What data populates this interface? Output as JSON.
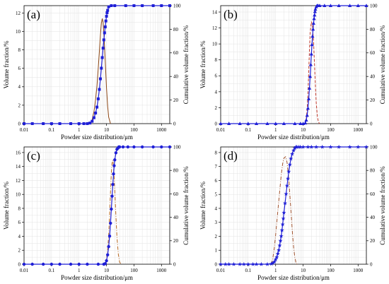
{
  "figure": {
    "panel_letters": [
      "(a)",
      "(b)",
      "(c)",
      "(d)"
    ]
  },
  "chart_data": [
    {
      "panel": "(a)",
      "type": "line",
      "xlabel": "Powder size distribution/μm",
      "ylabel": "Volume fraction/%",
      "y2label": "Cumulative volume fraction/%",
      "xscale": "log",
      "xlim": [
        0.01,
        2000
      ],
      "xticks": [
        "0.01",
        "0.1",
        "1",
        "10",
        "100",
        "1000"
      ],
      "ylim": [
        0,
        12.8
      ],
      "yticks": [
        0,
        2,
        4,
        6,
        8,
        10,
        12
      ],
      "y2lim": [
        0,
        100
      ],
      "y2ticks": [
        0,
        20,
        40,
        60,
        80,
        100
      ],
      "grid": true,
      "colors": {
        "frequency": "#8b4513",
        "cumulative": "#1f1fd6"
      },
      "marker": "square",
      "frequency_style": "solid",
      "frequency": {
        "x": [
          2.5,
          3,
          3.5,
          4,
          4.5,
          5,
          5.5,
          6,
          6.5,
          7,
          7.5,
          8,
          9,
          10,
          11,
          12,
          14
        ],
        "y": [
          0,
          0.4,
          1.3,
          2.6,
          4.1,
          6.0,
          7.8,
          9.6,
          10.9,
          11.4,
          11.0,
          9.8,
          6.8,
          3.9,
          1.9,
          0.7,
          0
        ]
      },
      "cumulative": {
        "x": [
          0.01,
          0.02,
          0.05,
          0.1,
          0.2,
          0.5,
          1,
          1.5,
          2,
          2.5,
          3,
          3.5,
          4,
          4.5,
          5,
          5.5,
          6,
          6.5,
          7,
          7.5,
          8,
          8.5,
          9,
          9.5,
          10,
          10.5,
          11,
          12,
          15,
          20,
          50,
          100,
          200,
          500,
          1000,
          2000
        ],
        "y": [
          0,
          0,
          0,
          0,
          0,
          0,
          0,
          0,
          0,
          0.5,
          2,
          5,
          9,
          14,
          21,
          29,
          38,
          47,
          56,
          64,
          71,
          77,
          82,
          87,
          91,
          94,
          96,
          99,
          100,
          100,
          100,
          100,
          100,
          100,
          100,
          100
        ]
      }
    },
    {
      "panel": "(b)",
      "type": "line",
      "xlabel": "Powder size distribution/μm",
      "ylabel": "Volume fraction/%",
      "y2label": "Cumulative volume fraction/%",
      "xscale": "log",
      "xlim": [
        0.01,
        2000
      ],
      "xticks": [
        "0.01",
        "0.1",
        "1",
        "10",
        "100",
        "1000"
      ],
      "ylim": [
        0,
        14.8
      ],
      "yticks": [
        0,
        2,
        4,
        6,
        8,
        10,
        12,
        14
      ],
      "y2lim": [
        0,
        100
      ],
      "y2ticks": [
        0,
        20,
        40,
        60,
        80,
        100
      ],
      "grid": true,
      "colors": {
        "frequency": "#c0392b",
        "cumulative": "#1f1fd6"
      },
      "marker": "triangle",
      "frequency_style": "dashed",
      "frequency": {
        "x": [
          12,
          13,
          14,
          15,
          16,
          17,
          18,
          20,
          22,
          24,
          26,
          28,
          30,
          33,
          36,
          40
        ],
        "y": [
          0,
          0.6,
          1.8,
          3.8,
          6.5,
          9.2,
          11.4,
          12.8,
          12.2,
          10.2,
          7.4,
          4.7,
          2.6,
          0.9,
          0.2,
          0
        ]
      },
      "cumulative": {
        "x": [
          0.01,
          0.02,
          0.05,
          0.1,
          0.2,
          0.5,
          1,
          2,
          5,
          8,
          10,
          12,
          13,
          14,
          15,
          16,
          17,
          18,
          19,
          20,
          21,
          22,
          23,
          24,
          25,
          26,
          27,
          28,
          30,
          32,
          35,
          40,
          60,
          100,
          200,
          500,
          1000,
          2000
        ],
        "y": [
          0,
          0,
          0,
          0,
          0,
          0,
          0,
          0,
          0,
          0,
          0,
          0.5,
          3,
          7,
          13,
          21,
          30,
          40,
          50,
          59,
          67,
          74,
          80,
          85,
          89,
          92,
          95,
          97,
          99,
          100,
          100,
          100,
          100,
          100,
          100,
          100,
          100,
          100
        ]
      }
    },
    {
      "panel": "(c)",
      "type": "line",
      "xlabel": "Powder size distribution/μm",
      "ylabel": "Volume fraction/%",
      "y2label": "Cumulative volume fraction/%",
      "xscale": "log",
      "xlim": [
        0.01,
        2000
      ],
      "xticks": [
        "0.01",
        "0.1",
        "1",
        "10",
        "100",
        "1000"
      ],
      "ylim": [
        0,
        16.8
      ],
      "yticks": [
        0,
        2,
        4,
        6,
        8,
        10,
        12,
        14,
        16
      ],
      "y2lim": [
        0,
        100
      ],
      "y2ticks": [
        0,
        20,
        40,
        60,
        80,
        100
      ],
      "grid": true,
      "colors": {
        "frequency": "#b5651d",
        "cumulative": "#1f1fd6"
      },
      "marker": "circle",
      "frequency_style": "dash-dot",
      "frequency": {
        "x": [
          9,
          10,
          11,
          12,
          13,
          14,
          15,
          16,
          17,
          18,
          20,
          22,
          24,
          27,
          30,
          34
        ],
        "y": [
          0,
          0.7,
          2.0,
          4.2,
          7.2,
          10.4,
          13.1,
          14.6,
          14.9,
          14.1,
          10.6,
          6.9,
          3.9,
          1.4,
          0.3,
          0
        ]
      },
      "cumulative": {
        "x": [
          0.01,
          0.02,
          0.05,
          0.1,
          0.2,
          0.5,
          1,
          2,
          5,
          8,
          9,
          10,
          11,
          12,
          13,
          14,
          15,
          16,
          17,
          18,
          19,
          20,
          22,
          24,
          26,
          28,
          30,
          40,
          60,
          100,
          200,
          500,
          1000,
          2000
        ],
        "y": [
          0,
          0,
          0,
          0,
          0,
          0,
          0,
          0,
          0,
          0,
          0.5,
          3,
          8,
          15,
          24,
          35,
          47,
          58,
          68,
          77,
          84,
          89,
          95,
          98,
          99,
          100,
          100,
          100,
          100,
          100,
          100,
          100,
          100,
          100
        ]
      }
    },
    {
      "panel": "(d)",
      "type": "line",
      "xlabel": "Powder size distribution/μm",
      "ylabel": "Volume fraction/%",
      "y2label": "Cumulative volume fraction/%",
      "xscale": "log",
      "xlim": [
        0.01,
        2000
      ],
      "xticks": [
        "0.01",
        "0.1",
        "1",
        "10",
        "100",
        "1000"
      ],
      "ylim": [
        0,
        8.4
      ],
      "yticks": [
        0,
        1,
        2,
        3,
        4,
        5,
        6,
        7,
        8
      ],
      "y2lim": [
        0,
        100
      ],
      "y2ticks": [
        0,
        20,
        40,
        60,
        80,
        100
      ],
      "grid": true,
      "colors": {
        "frequency": "#a0522d",
        "cumulative": "#1f1fd6"
      },
      "marker": "star",
      "frequency_style": "dash-dot",
      "frequency": {
        "x": [
          0.7,
          0.8,
          0.9,
          1,
          1.2,
          1.4,
          1.6,
          1.8,
          2,
          2.3,
          2.6,
          3,
          3.5,
          4,
          4.5,
          5,
          5.5,
          6
        ],
        "y": [
          0,
          0.5,
          1.2,
          2.1,
          3.8,
          5.2,
          6.4,
          7.2,
          7.6,
          7.7,
          7.3,
          6.1,
          4.2,
          2.5,
          1.2,
          0.5,
          0.1,
          0
        ]
      },
      "cumulative": {
        "x": [
          0.01,
          0.015,
          0.02,
          0.03,
          0.05,
          0.07,
          0.1,
          0.15,
          0.2,
          0.3,
          0.5,
          0.7,
          0.8,
          0.9,
          1,
          1.1,
          1.2,
          1.3,
          1.4,
          1.5,
          1.6,
          1.7,
          1.8,
          1.9,
          2,
          2.2,
          2.4,
          2.6,
          2.8,
          3,
          3.3,
          3.6,
          4,
          4.5,
          5,
          5.5,
          6,
          7,
          8,
          10,
          15,
          20,
          30,
          50,
          100,
          200,
          500,
          1000,
          2000
        ],
        "y": [
          0,
          0,
          0,
          0,
          0,
          0,
          0,
          0,
          0,
          0,
          0,
          0.3,
          1,
          2,
          4,
          6,
          9,
          12,
          16,
          20,
          24,
          29,
          34,
          39,
          44,
          52,
          60,
          67,
          73,
          79,
          85,
          90,
          94,
          97,
          99,
          100,
          100,
          100,
          100,
          100,
          100,
          100,
          100,
          100,
          100,
          100,
          100,
          100,
          100
        ]
      }
    }
  ]
}
